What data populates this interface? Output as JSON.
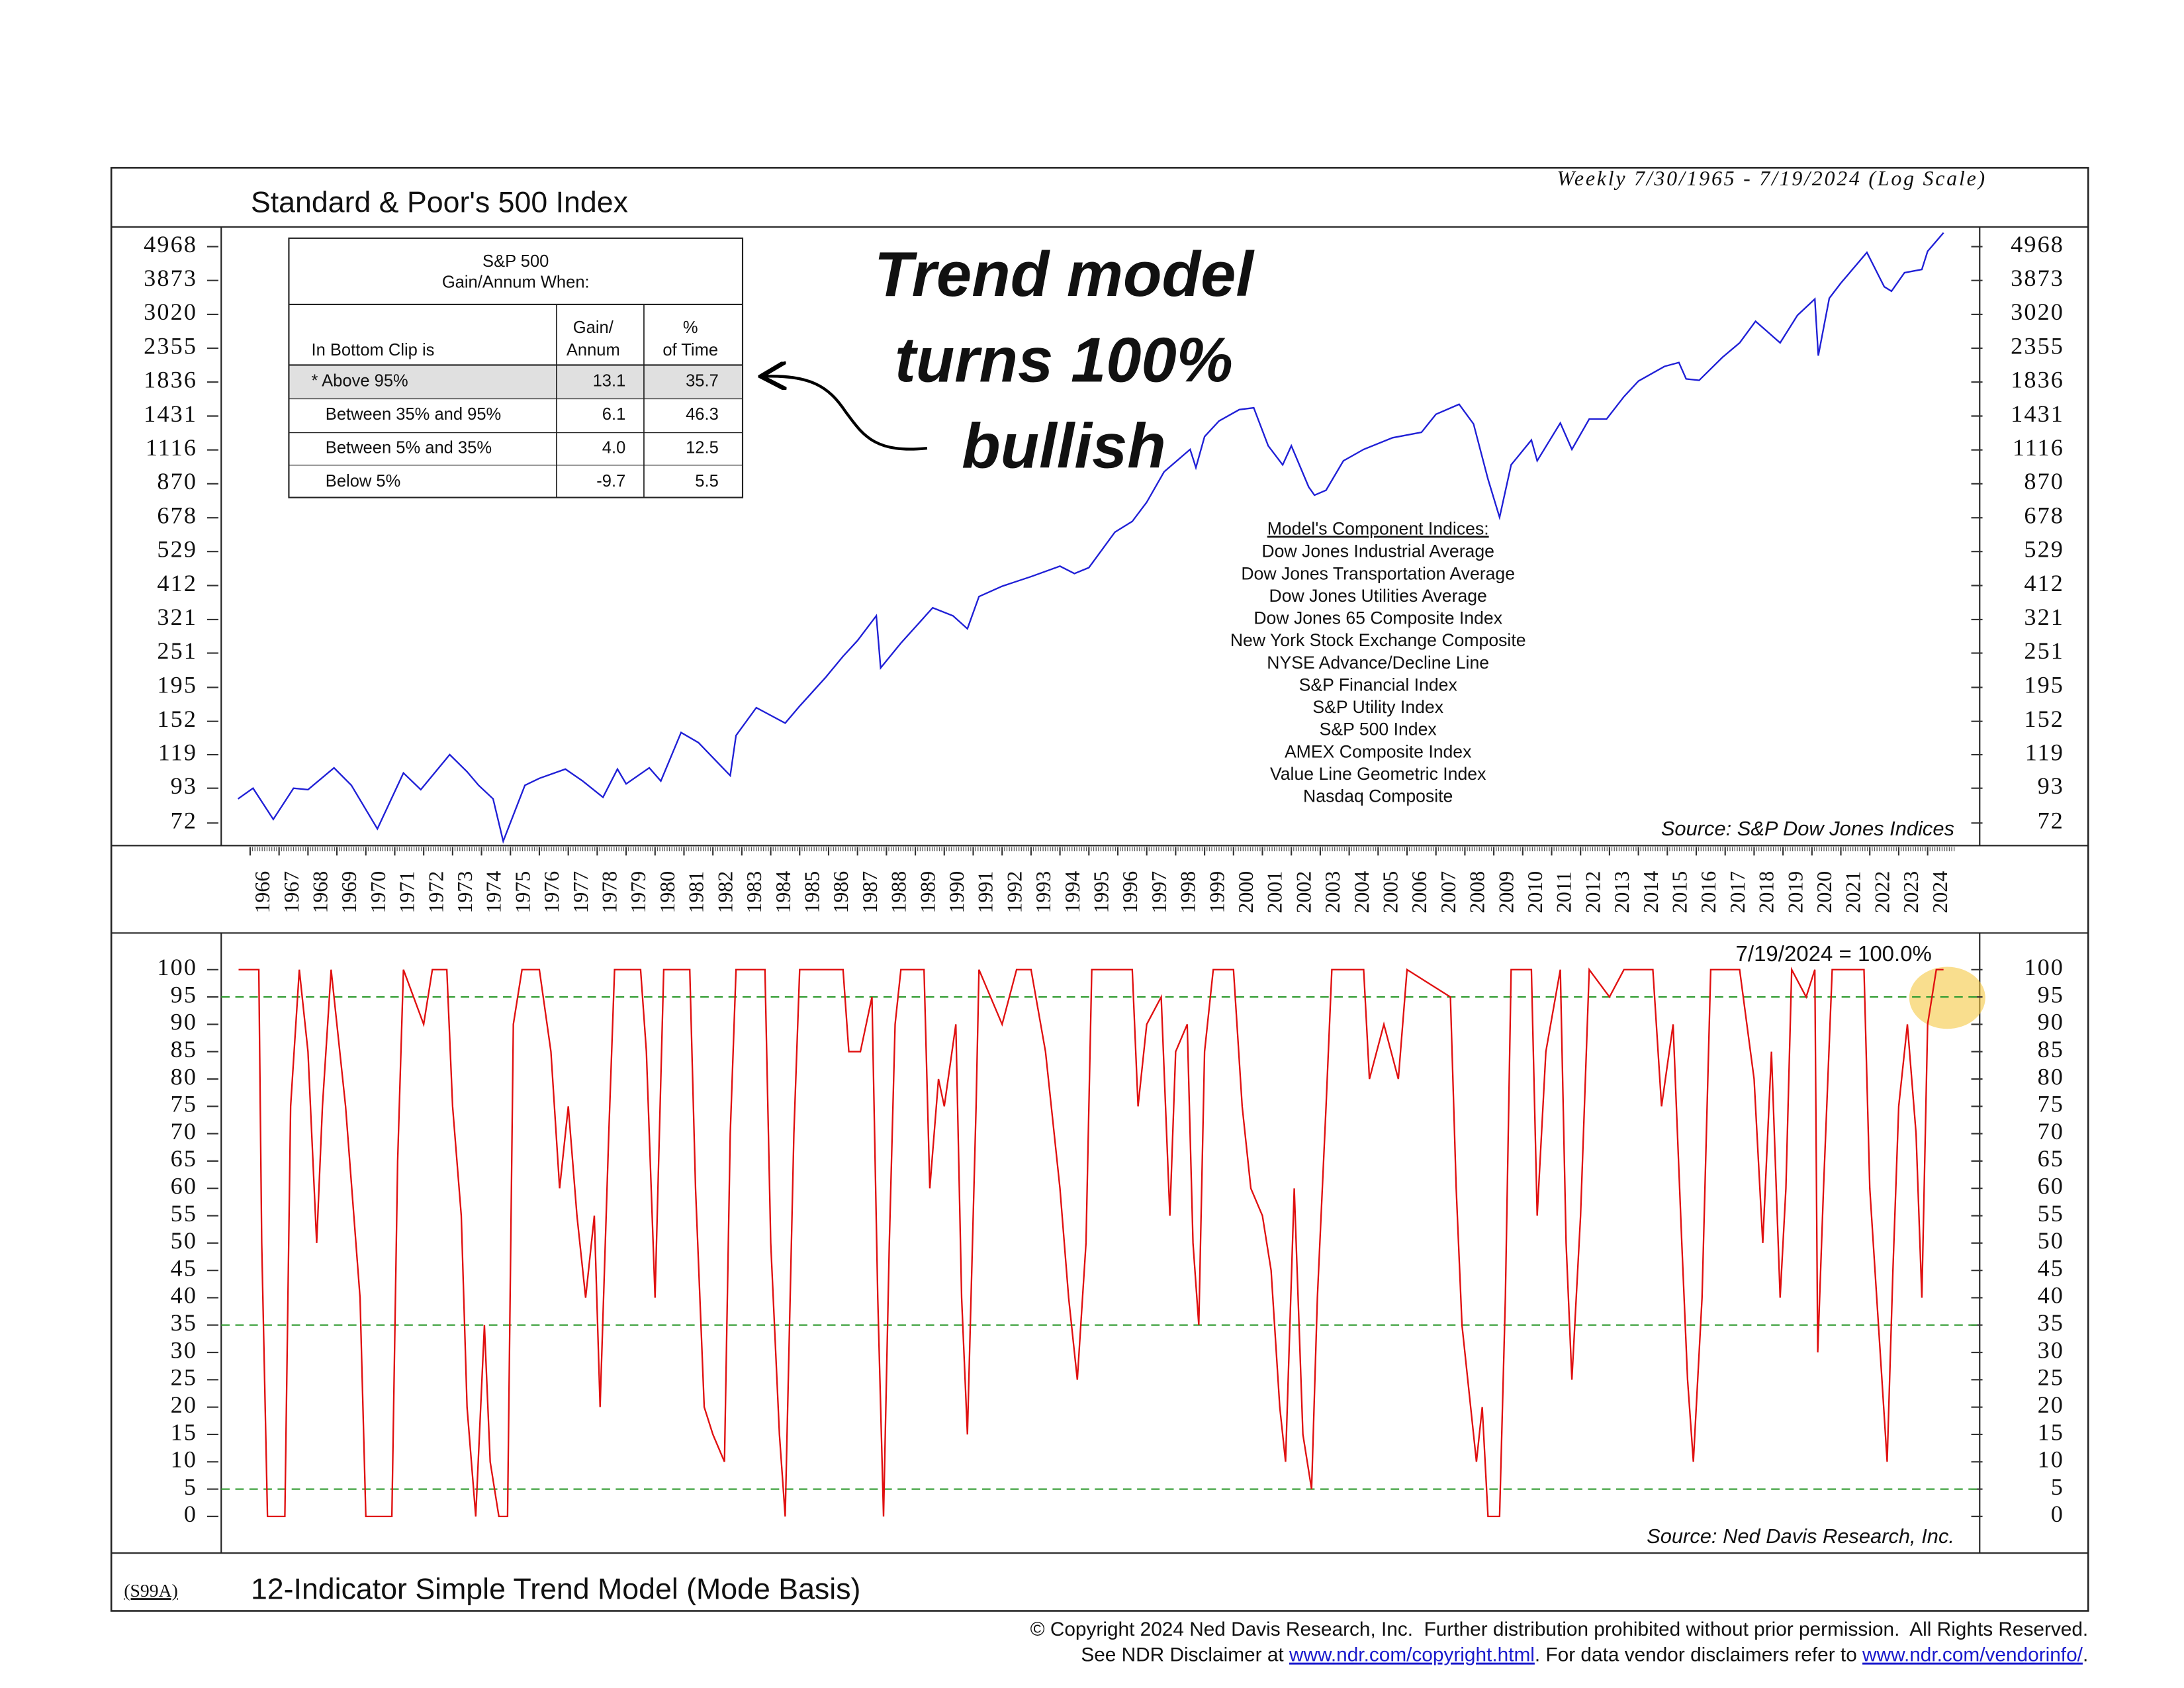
{
  "chart_data": [
    {
      "type": "line",
      "title": "Standard & Poor's 500 Index",
      "subtitle": "Weekly 7/30/1965 - 7/19/2024 (Log Scale)",
      "log_scale": true,
      "color": "#1f1fd6",
      "source": "Source: S&P Dow Jones Indices",
      "xlim": [
        1965.0,
        2025.8
      ],
      "xticks": [
        1966,
        1967,
        1968,
        1969,
        1970,
        1971,
        1972,
        1973,
        1974,
        1975,
        1976,
        1977,
        1978,
        1979,
        1980,
        1981,
        1982,
        1983,
        1984,
        1985,
        1986,
        1987,
        1988,
        1989,
        1990,
        1991,
        1992,
        1993,
        1994,
        1995,
        1996,
        1997,
        1998,
        1999,
        2000,
        2001,
        2002,
        2003,
        2004,
        2005,
        2006,
        2007,
        2008,
        2009,
        2010,
        2011,
        2012,
        2013,
        2014,
        2015,
        2016,
        2017,
        2018,
        2019,
        2020,
        2021,
        2022,
        2023,
        2024
      ],
      "ylim": [
        61,
        5740
      ],
      "yticks": [
        72,
        93,
        119,
        152,
        195,
        251,
        321,
        412,
        529,
        678,
        870,
        1116,
        1431,
        1836,
        2355,
        3020,
        3873,
        4968
      ],
      "x": [
        1965.58,
        1966.1,
        1966.8,
        1967.5,
        1968.0,
        1968.9,
        1969.5,
        1970.4,
        1971.3,
        1971.9,
        1972.9,
        1973.5,
        1973.9,
        1974.4,
        1974.75,
        1975.5,
        1976.0,
        1976.9,
        1977.5,
        1978.2,
        1978.7,
        1979.0,
        1979.8,
        1980.2,
        1980.9,
        1981.5,
        1982.6,
        1982.8,
        1983.5,
        1984.5,
        1985.0,
        1985.9,
        1986.5,
        1987.0,
        1987.65,
        1987.8,
        1988.5,
        1989.6,
        1990.3,
        1990.8,
        1991.2,
        1992.0,
        1993.0,
        1994.0,
        1994.5,
        1995.0,
        1995.9,
        1996.5,
        1997.0,
        1997.6,
        1998.5,
        1998.7,
        1999.0,
        1999.5,
        2000.2,
        2000.7,
        2001.2,
        2001.7,
        2002.0,
        2002.6,
        2002.8,
        2003.2,
        2003.8,
        2004.5,
        2005.5,
        2006.5,
        2007.0,
        2007.8,
        2008.3,
        2008.8,
        2009.2,
        2009.6,
        2010.3,
        2010.5,
        2011.3,
        2011.7,
        2012.3,
        2012.9,
        2013.5,
        2014.0,
        2014.9,
        2015.4,
        2015.65,
        2016.1,
        2016.9,
        2017.5,
        2018.05,
        2018.9,
        2019.5,
        2020.1,
        2020.22,
        2020.6,
        2021.0,
        2021.9,
        2022.5,
        2022.75,
        2023.2,
        2023.8,
        2024.0,
        2024.55
      ],
      "values": [
        86,
        93,
        74,
        93,
        92,
        108,
        95,
        69,
        104,
        92,
        119,
        105,
        95,
        86,
        63,
        95,
        100,
        107,
        98,
        87,
        107,
        96,
        108,
        98,
        140,
        130,
        102,
        137,
        168,
        150,
        170,
        210,
        245,
        275,
        330,
        225,
        270,
        350,
        330,
        300,
        380,
        410,
        440,
        475,
        450,
        470,
        610,
        660,
        760,
        950,
        1120,
        980,
        1230,
        1380,
        1500,
        1520,
        1150,
        1000,
        1150,
        850,
        800,
        830,
        1030,
        1120,
        1220,
        1270,
        1450,
        1560,
        1350,
        900,
        680,
        1000,
        1200,
        1030,
        1360,
        1120,
        1400,
        1400,
        1650,
        1850,
        2060,
        2120,
        1880,
        1860,
        2200,
        2450,
        2870,
        2450,
        3000,
        3380,
        2230,
        3400,
        3800,
        4760,
        3700,
        3580,
        4100,
        4200,
        4800,
        5500
      ]
    },
    {
      "type": "line",
      "title": "12-Indicator Simple Trend Model (Mode Basis)",
      "chart_id": "(S99A)",
      "color": "#e01010",
      "source": "Source: Ned Davis Research, Inc.",
      "annotation": "7/19/2024 = 100.0%",
      "xlim": [
        1965.0,
        2025.8
      ],
      "ylim": [
        -6.7,
        106.7
      ],
      "yticks": [
        0,
        5,
        10,
        15,
        20,
        25,
        30,
        35,
        40,
        45,
        50,
        55,
        60,
        65,
        70,
        75,
        80,
        85,
        90,
        95,
        100
      ],
      "reference_lines": [
        95,
        35,
        5
      ],
      "reference_color": "#2e9a2e",
      "x": [
        1965.6,
        1966.3,
        1966.4,
        1966.6,
        1967.2,
        1967.4,
        1967.7,
        1968.0,
        1968.3,
        1968.5,
        1968.8,
        1969.3,
        1969.8,
        1970.0,
        1970.9,
        1971.1,
        1971.3,
        1972.0,
        1972.3,
        1972.8,
        1973.0,
        1973.3,
        1973.5,
        1973.8,
        1974.1,
        1974.3,
        1974.6,
        1974.9,
        1975.1,
        1975.4,
        1976.0,
        1976.4,
        1976.7,
        1977.0,
        1977.3,
        1977.6,
        1977.9,
        1978.1,
        1978.4,
        1978.6,
        1979.5,
        1979.7,
        1980.0,
        1980.3,
        1981.2,
        1981.4,
        1981.7,
        1982.0,
        1982.4,
        1982.6,
        1982.8,
        1983.8,
        1984.0,
        1984.3,
        1984.5,
        1984.8,
        1985.0,
        1986.5,
        1986.7,
        1987.1,
        1987.5,
        1987.7,
        1987.9,
        1988.1,
        1988.3,
        1988.5,
        1989.3,
        1989.5,
        1989.8,
        1990.0,
        1990.4,
        1990.6,
        1990.8,
        1991.1,
        1991.2,
        1992.0,
        1992.5,
        1993.0,
        1993.5,
        1994.0,
        1994.3,
        1994.6,
        1994.9,
        1995.1,
        1996.5,
        1996.7,
        1997.0,
        1997.5,
        1997.8,
        1998.0,
        1998.4,
        1998.6,
        1998.8,
        1999.0,
        1999.3,
        2000.0,
        2000.3,
        2000.6,
        2001.0,
        2001.3,
        2001.6,
        2001.8,
        2002.1,
        2002.4,
        2002.7,
        2002.9,
        2003.2,
        2003.4,
        2004.5,
        2004.7,
        2005.2,
        2005.7,
        2006.0,
        2007.5,
        2007.7,
        2007.9,
        2008.1,
        2008.4,
        2008.6,
        2008.8,
        2009.2,
        2009.4,
        2009.6,
        2010.3,
        2010.5,
        2010.8,
        2011.3,
        2011.5,
        2011.7,
        2012.0,
        2012.3,
        2013.0,
        2013.5,
        2014.5,
        2014.8,
        2015.2,
        2015.5,
        2015.7,
        2015.9,
        2016.2,
        2016.5,
        2017.5,
        2018.0,
        2018.3,
        2018.6,
        2018.9,
        2019.1,
        2019.3,
        2019.8,
        2020.1,
        2020.2,
        2020.4,
        2020.7,
        2021.8,
        2022.0,
        2022.3,
        2022.6,
        2022.8,
        2023.0,
        2023.3,
        2023.6,
        2023.8,
        2024.0,
        2024.3,
        2024.55
      ],
      "values": [
        100,
        100,
        50,
        0,
        0,
        75,
        100,
        85,
        50,
        75,
        100,
        75,
        40,
        0,
        0,
        65,
        100,
        90,
        100,
        100,
        75,
        55,
        20,
        0,
        35,
        10,
        0,
        0,
        90,
        100,
        100,
        85,
        60,
        75,
        55,
        40,
        55,
        20,
        70,
        100,
        100,
        85,
        40,
        100,
        100,
        60,
        20,
        15,
        10,
        70,
        100,
        100,
        50,
        15,
        0,
        70,
        100,
        100,
        85,
        85,
        95,
        40,
        0,
        50,
        90,
        100,
        100,
        60,
        80,
        75,
        90,
        40,
        15,
        75,
        100,
        90,
        100,
        100,
        85,
        60,
        40,
        25,
        50,
        100,
        100,
        75,
        90,
        95,
        55,
        85,
        90,
        50,
        35,
        85,
        100,
        100,
        75,
        60,
        55,
        45,
        20,
        10,
        60,
        15,
        5,
        40,
        75,
        100,
        100,
        80,
        90,
        80,
        100,
        95,
        60,
        35,
        25,
        10,
        20,
        0,
        0,
        40,
        100,
        100,
        55,
        85,
        100,
        50,
        25,
        55,
        100,
        95,
        100,
        100,
        75,
        90,
        50,
        25,
        10,
        40,
        100,
        100,
        80,
        50,
        85,
        40,
        60,
        100,
        95,
        100,
        30,
        60,
        100,
        100,
        60,
        35,
        10,
        45,
        75,
        90,
        70,
        40,
        90,
        100,
        100
      ]
    }
  ],
  "table": {
    "title": [
      "S&P 500",
      "Gain/Annum When:"
    ],
    "headers": [
      [
        "In Bottom Clip is"
      ],
      [
        "Gain/",
        "Annum"
      ],
      [
        "%",
        "of Time"
      ]
    ],
    "rows": [
      [
        "* Above 95%",
        "13.1",
        "35.7"
      ],
      [
        "Between 35% and 95%",
        "6.1",
        "46.3"
      ],
      [
        "Between 5% and 35%",
        "4.0",
        "12.5"
      ],
      [
        "Below 5%",
        "-9.7",
        "5.5"
      ]
    ]
  },
  "callout": [
    "Trend model",
    "turns 100%",
    "bullish"
  ],
  "components": {
    "title": "Model's Component Indices:",
    "items": [
      "Dow Jones Industrial Average",
      "Dow Jones Transportation Average",
      "Dow Jones Utilities Average",
      "Dow Jones 65 Composite Index",
      "New York Stock Exchange Composite",
      "NYSE Advance/Decline Line",
      "S&P Financial Index",
      "S&P Utility Index",
      "S&P 500 Index",
      "AMEX Composite Index",
      "Value Line Geometric Index",
      "Nasdaq Composite"
    ]
  },
  "footer": {
    "copyright": "© Copyright 2024 Ned Davis Research, Inc.  Further distribution prohibited without prior permission.  All Rights Reserved.",
    "disclaimer": [
      "See NDR Disclaimer at ",
      "www.ndr.com/copyright.html",
      ". For data vendor disclaimers refer to ",
      "www.ndr.com/vendorinfo/",
      "."
    ]
  }
}
